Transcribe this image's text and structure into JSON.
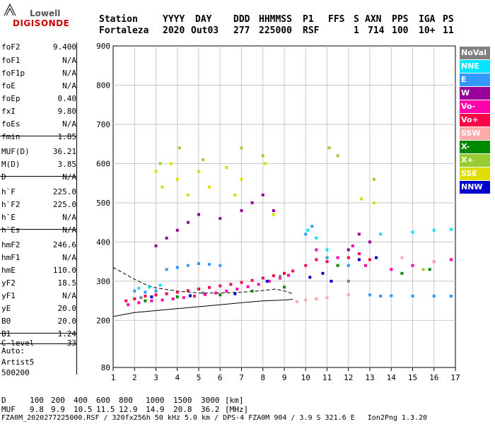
{
  "logo": {
    "line1": "Lowell",
    "line2": "DIGISONDE"
  },
  "header": {
    "labels": [
      "Station",
      "YYYY",
      "DAY",
      "DDD",
      "HHMMSS",
      "P1",
      "FFS",
      "S",
      "AXN",
      "PPS",
      "IGA",
      "PS"
    ],
    "values": [
      "Fortaleza",
      "2020",
      "Out03",
      "277",
      "225000",
      "RSF",
      "",
      "1",
      "714",
      "100",
      "10+",
      "11"
    ]
  },
  "params": {
    "group1": [
      {
        "label": "foF2",
        "value": "9.400"
      },
      {
        "label": "foF1",
        "value": "N/A"
      },
      {
        "label": "foF1p",
        "value": "N/A"
      },
      {
        "label": "foE",
        "value": "N/A"
      },
      {
        "label": "foEp",
        "value": "0.40"
      },
      {
        "label": "fxI",
        "value": "9.80"
      },
      {
        "label": "foEs",
        "value": "N/A"
      },
      {
        "label": "fmin",
        "value": "1.85"
      }
    ],
    "group2": [
      {
        "label": "MUF(D)",
        "value": "36.21"
      },
      {
        "label": "M(D)",
        "value": "3.85"
      },
      {
        "label": "D",
        "value": "N/A"
      }
    ],
    "group3": [
      {
        "label": "h`F",
        "value": "225.0"
      },
      {
        "label": "h`F2",
        "value": "225.0"
      },
      {
        "label": "h`E",
        "value": "N/A"
      },
      {
        "label": "h`Es",
        "value": "N/A"
      }
    ],
    "group4": [
      {
        "label": "hmF2",
        "value": "246.6"
      },
      {
        "label": "hmF1",
        "value": "N/A"
      },
      {
        "label": "hmE",
        "value": "110.0"
      },
      {
        "label": "yF2",
        "value": "18.5"
      },
      {
        "label": "yF1",
        "value": "N/A"
      },
      {
        "label": "yE",
        "value": "20.0"
      },
      {
        "label": "B0",
        "value": "20.0"
      },
      {
        "label": "B1",
        "value": "1.24"
      }
    ],
    "clevel": {
      "label": "C-level",
      "value": "33"
    },
    "auto": [
      "Auto:",
      "Artist5",
      "500200"
    ]
  },
  "legend": [
    {
      "label": "NoVal",
      "color": "#808080"
    },
    {
      "label": "NNE",
      "color": "#00e5ff"
    },
    {
      "label": "E",
      "color": "#3399ff"
    },
    {
      "label": "W",
      "color": "#990099"
    },
    {
      "label": "Vo-",
      "color": "#ff00aa"
    },
    {
      "label": "Vo+",
      "color": "#ff0044"
    },
    {
      "label": "SSW",
      "color": "#ffaaaa"
    },
    {
      "label": "X-",
      "color": "#008800"
    },
    {
      "label": "X+",
      "color": "#99cc33"
    },
    {
      "label": "SSE",
      "color": "#dddd00"
    },
    {
      "label": "NNW",
      "color": "#0000cc"
    }
  ],
  "chart_data": {
    "type": "scatter",
    "title": "",
    "xlabel": "",
    "ylabel": "",
    "xlim": [
      1,
      17
    ],
    "ylim": [
      80,
      900
    ],
    "x_ticks": [
      1,
      2,
      3,
      4,
      5,
      6,
      7,
      8,
      9,
      10,
      11,
      12,
      13,
      14,
      15,
      16,
      17
    ],
    "y_ticks": [
      80,
      200,
      300,
      400,
      500,
      600,
      700,
      800,
      900
    ],
    "grid": true,
    "legend_placement": "right",
    "series": [
      {
        "name": "Vo+",
        "color": "#ff0044",
        "points": [
          [
            1.6,
            250
          ],
          [
            2,
            255
          ],
          [
            2.5,
            262
          ],
          [
            3,
            265
          ],
          [
            3.5,
            268
          ],
          [
            4,
            272
          ],
          [
            4.5,
            276
          ],
          [
            5,
            280
          ],
          [
            5.5,
            284
          ],
          [
            6,
            288
          ],
          [
            6.5,
            292
          ],
          [
            7,
            297
          ],
          [
            7.5,
            302
          ],
          [
            8,
            308
          ],
          [
            8.5,
            314
          ],
          [
            9,
            320
          ],
          [
            9.4,
            326
          ],
          [
            10,
            340
          ],
          [
            10.5,
            355
          ],
          [
            11,
            350
          ],
          [
            12,
            360
          ],
          [
            12.5,
            370
          ],
          [
            13,
            355
          ]
        ]
      },
      {
        "name": "Vo-",
        "color": "#ff00aa",
        "points": [
          [
            1.7,
            240
          ],
          [
            2.2,
            245
          ],
          [
            2.8,
            250
          ],
          [
            3.3,
            252
          ],
          [
            3.8,
            255
          ],
          [
            4.3,
            258
          ],
          [
            4.8,
            262
          ],
          [
            5.3,
            266
          ],
          [
            5.8,
            270
          ],
          [
            6.3,
            275
          ],
          [
            6.8,
            280
          ],
          [
            7.3,
            286
          ],
          [
            7.8,
            292
          ],
          [
            8.3,
            300
          ],
          [
            8.8,
            308
          ],
          [
            9.2,
            315
          ],
          [
            10.5,
            380
          ],
          [
            11.5,
            360
          ],
          [
            12.2,
            390
          ],
          [
            12.8,
            340
          ],
          [
            14,
            330
          ],
          [
            15,
            340
          ],
          [
            16,
            350
          ],
          [
            16.8,
            355
          ]
        ]
      },
      {
        "name": "E",
        "color": "#3399ff",
        "points": [
          [
            2,
            275
          ],
          [
            2.5,
            272
          ],
          [
            3,
            275
          ],
          [
            3.5,
            330
          ],
          [
            4,
            335
          ],
          [
            4.5,
            340
          ],
          [
            5,
            345
          ],
          [
            5.5,
            343
          ],
          [
            6,
            340
          ],
          [
            10,
            420
          ],
          [
            10.3,
            440
          ],
          [
            11,
            360
          ],
          [
            12,
            340
          ],
          [
            13,
            265
          ],
          [
            13.5,
            262
          ],
          [
            14,
            263
          ],
          [
            15,
            262
          ],
          [
            16,
            262
          ],
          [
            16.8,
            262
          ]
        ]
      },
      {
        "name": "NNE",
        "color": "#00e5ff",
        "points": [
          [
            2.2,
            282
          ],
          [
            2.7,
            285
          ],
          [
            3.2,
            290
          ],
          [
            10.1,
            430
          ],
          [
            10.5,
            410
          ],
          [
            11,
            380
          ],
          [
            13.5,
            420
          ],
          [
            15,
            425
          ],
          [
            16,
            430
          ],
          [
            16.8,
            432
          ]
        ]
      },
      {
        "name": "W",
        "color": "#990099",
        "points": [
          [
            3,
            390
          ],
          [
            3.5,
            410
          ],
          [
            4,
            430
          ],
          [
            4.5,
            450
          ],
          [
            5,
            470
          ],
          [
            6,
            460
          ],
          [
            7,
            480
          ],
          [
            7.5,
            500
          ],
          [
            8,
            520
          ],
          [
            8.5,
            480
          ],
          [
            12,
            380
          ],
          [
            12.5,
            420
          ],
          [
            13,
            400
          ]
        ]
      },
      {
        "name": "SSE",
        "color": "#dddd00",
        "points": [
          [
            3,
            580
          ],
          [
            3.3,
            540
          ],
          [
            3.7,
            600
          ],
          [
            4,
            560
          ],
          [
            4.5,
            520
          ],
          [
            5,
            580
          ],
          [
            5.5,
            540
          ],
          [
            6.3,
            590
          ],
          [
            6.7,
            520
          ],
          [
            7,
            560
          ],
          [
            8.1,
            600
          ],
          [
            8.5,
            470
          ],
          [
            12.6,
            510
          ],
          [
            13.2,
            500
          ]
        ]
      },
      {
        "name": "X+",
        "color": "#99cc33",
        "points": [
          [
            3.2,
            600
          ],
          [
            4.1,
            640
          ],
          [
            5.2,
            610
          ],
          [
            7,
            640
          ],
          [
            8,
            620
          ],
          [
            11.1,
            640
          ],
          [
            11.5,
            620
          ],
          [
            13.2,
            560
          ],
          [
            15.5,
            330
          ]
        ]
      },
      {
        "name": "X-",
        "color": "#008800",
        "points": [
          [
            2.5,
            250
          ],
          [
            4,
            260
          ],
          [
            6,
            265
          ],
          [
            7.5,
            275
          ],
          [
            9,
            285
          ],
          [
            11.5,
            340
          ],
          [
            14.5,
            320
          ],
          [
            15.8,
            330
          ]
        ]
      },
      {
        "name": "SSW",
        "color": "#ffaaaa",
        "points": [
          [
            9.6,
            248
          ],
          [
            10,
            252
          ],
          [
            10.5,
            255
          ],
          [
            11,
            258
          ],
          [
            12,
            265
          ],
          [
            14.5,
            360
          ],
          [
            16,
            350
          ]
        ]
      },
      {
        "name": "NNW",
        "color": "#0000cc",
        "points": [
          [
            2.8,
            260
          ],
          [
            4.6,
            263
          ],
          [
            6.7,
            268
          ],
          [
            8.2,
            300
          ],
          [
            10.2,
            310
          ],
          [
            10.8,
            320
          ],
          [
            11.2,
            300
          ],
          [
            12.5,
            355
          ],
          [
            13.3,
            360
          ]
        ]
      },
      {
        "name": "NoVal",
        "color": "#808080",
        "points": [
          [
            2.3,
            258
          ],
          [
            5.2,
            270
          ],
          [
            8.8,
            312
          ],
          [
            12,
            300
          ]
        ]
      }
    ],
    "profile_lower": [
      [
        1,
        210
      ],
      [
        2,
        220
      ],
      [
        3,
        225
      ],
      [
        4,
        230
      ],
      [
        5,
        235
      ],
      [
        6,
        240
      ],
      [
        7,
        245
      ],
      [
        8,
        250
      ],
      [
        9,
        252
      ],
      [
        9.4,
        254
      ]
    ],
    "profile_upper": [
      [
        1,
        335
      ],
      [
        1.5,
        320
      ],
      [
        2,
        305
      ],
      [
        2.5,
        292
      ],
      [
        3,
        283
      ],
      [
        4,
        275
      ],
      [
        5,
        270
      ],
      [
        6,
        270
      ],
      [
        7,
        272
      ],
      [
        8,
        276
      ],
      [
        8.6,
        280
      ],
      [
        9,
        275
      ],
      [
        9.4,
        268
      ]
    ]
  },
  "footer": {
    "d_label": "D",
    "d_values": [
      "100",
      "200",
      "400",
      "600",
      "800",
      "1000",
      "1500",
      "3000",
      "[km]"
    ],
    "muf_label": "MUF",
    "muf_values": [
      "9.8",
      "9.9",
      "10.5",
      "11.5",
      "12.9",
      "14.9",
      "20.8",
      "36.2",
      "[MHz]"
    ],
    "info": "FZA0M_2020277225000.RSF / 320fx256h 50 kHz 5.0 km / DPS-4 FZA0M 904 / 3.9 S 321.6 E   Ion2Png 1.3.20"
  }
}
